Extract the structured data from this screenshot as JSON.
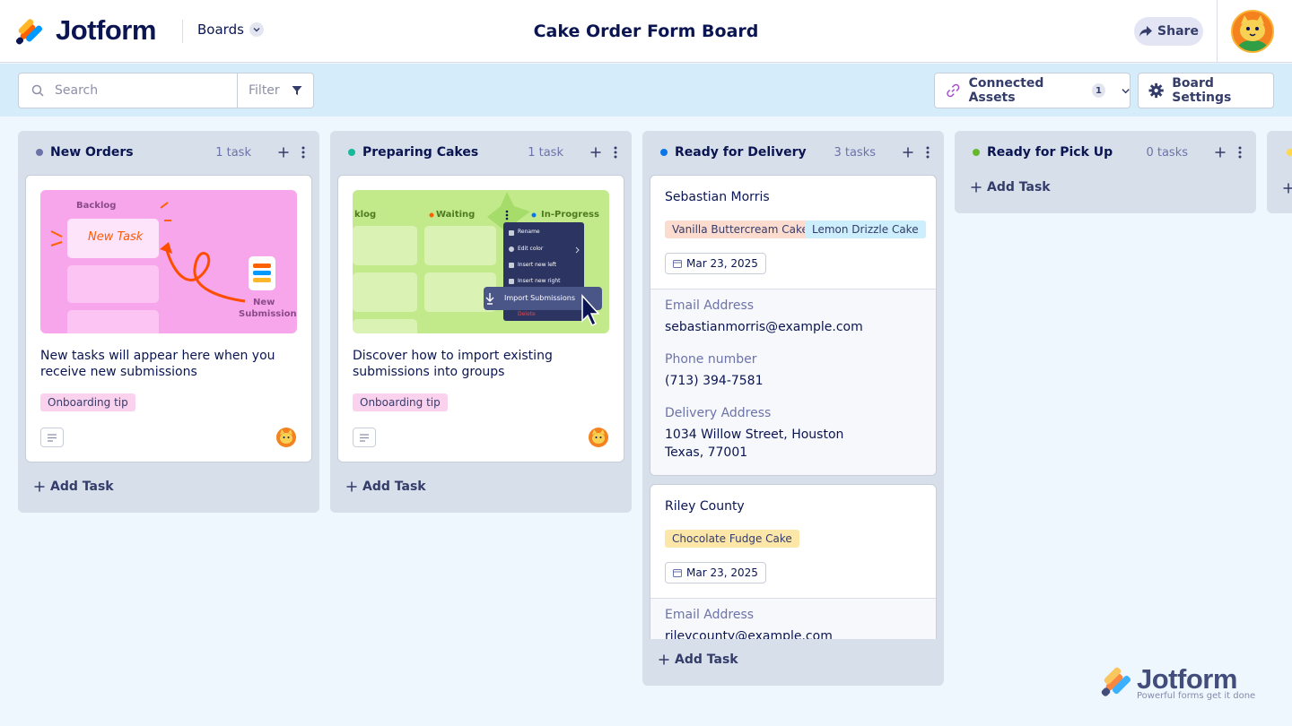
{
  "header": {
    "brand": "Jotform",
    "boards_label": "Boards",
    "title": "Cake Order Form Board",
    "share_label": "Share"
  },
  "toolbar": {
    "search_placeholder": "Search",
    "filter_label": "Filter",
    "connected_assets_label": "Connected Assets",
    "connected_assets_count": "1",
    "board_settings_label": "Board Settings"
  },
  "columns": [
    {
      "title": "New Orders",
      "count": "1 task",
      "dot_color": "#6c73a8",
      "add_task": "Add Task",
      "card": {
        "description": "New tasks will appear here when you receive new submissions",
        "tag": "Onboarding tip",
        "illustration": {
          "backlog": "Backlog",
          "new_task": "New Task",
          "new": "New",
          "submission": "Submission"
        }
      }
    },
    {
      "title": "Preparing Cakes",
      "count": "1 task",
      "dot_color": "#18b89a",
      "add_task": "Add Task",
      "card": {
        "description": "Discover how to import existing submissions into groups",
        "tag": "Onboarding tip",
        "illustration": {
          "backlog": "klog",
          "waiting": "Waiting",
          "in_progress": "In-Progress",
          "menu": [
            "Rename",
            "Edit color",
            "Insert new left",
            "Insert new right"
          ],
          "import": "Import Submissions",
          "delete": "Delete"
        }
      }
    },
    {
      "title": "Ready for Delivery",
      "count": "3 tasks",
      "dot_color": "#0a75e6",
      "add_task": "Add Task",
      "submissions": [
        {
          "name": "Sebastian Morris",
          "tags": [
            "Vanilla Buttercream Cake",
            "Lemon Drizzle Cake"
          ],
          "date": "Mar 23, 2025",
          "email_label": "Email Address",
          "email": "sebastianmorris@example.com",
          "phone_label": "Phone number",
          "phone": "(713) 394-7581",
          "address_label": "Delivery Address",
          "address_line1": "1034 Willow Street, Houston",
          "address_line2": "Texas, 77001"
        },
        {
          "name": "Riley County",
          "tags": [
            "Chocolate Fudge Cake"
          ],
          "date": "Mar 23, 2025",
          "email_label": "Email Address",
          "email": "rileycounty@example.com"
        }
      ]
    },
    {
      "title": "Ready for Pick Up",
      "count": "0 tasks",
      "dot_color": "#64b82a",
      "add_task": "Add Task"
    }
  ],
  "watermark": {
    "brand": "Jotform",
    "tagline": "Powerful forms get it done"
  },
  "colors": {
    "accent": "#0a1551",
    "toolbar_bg": "#d5ecfb",
    "column_bg": "#d6dfea"
  }
}
